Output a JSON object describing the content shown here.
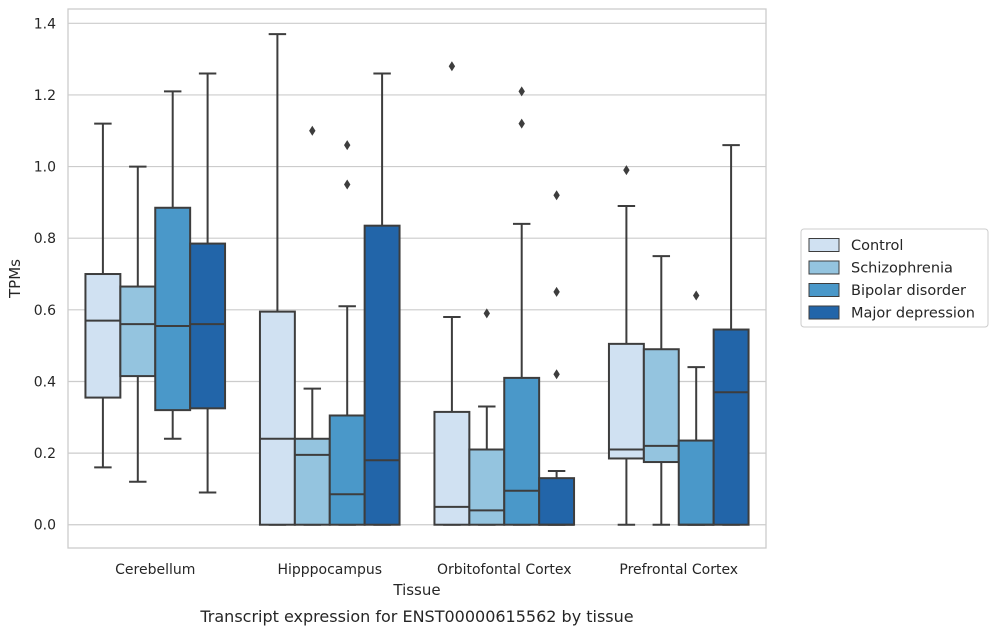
{
  "caption": "Transcript expression for ENST00000615562 by tissue",
  "chart_data": {
    "type": "box",
    "xlabel": "Tissue",
    "ylabel": "TPMs",
    "ylim": [
      -0.065,
      1.44
    ],
    "yticks": [
      0.0,
      0.2,
      0.4,
      0.6,
      0.8,
      1.0,
      1.2,
      1.4
    ],
    "ytick_labels": [
      "0.0",
      "0.2",
      "0.4",
      "0.6",
      "0.8",
      "1.0",
      "1.2",
      "1.4"
    ],
    "grid": "horizontal",
    "legend_position": "right",
    "categories": [
      "Cerebellum",
      "Hipppocampus",
      "Orbitofontal Cortex",
      "Prefrontal Cortex"
    ],
    "series": [
      {
        "name": "Control",
        "color": "#d0e1f2",
        "boxes": [
          {
            "whislo": 0.16,
            "q1": 0.355,
            "med": 0.57,
            "q3": 0.7,
            "whishi": 1.12,
            "fliers": []
          },
          {
            "whislo": 0.0,
            "q1": 0.0,
            "med": 0.24,
            "q3": 0.595,
            "whishi": 1.37,
            "fliers": []
          },
          {
            "whislo": 0.0,
            "q1": 0.0,
            "med": 0.05,
            "q3": 0.315,
            "whishi": 0.58,
            "fliers": [
              1.28
            ]
          },
          {
            "whislo": 0.0,
            "q1": 0.185,
            "med": 0.21,
            "q3": 0.505,
            "whishi": 0.89,
            "fliers": [
              0.99
            ]
          }
        ]
      },
      {
        "name": "Schizophrenia",
        "color": "#94c4df",
        "boxes": [
          {
            "whislo": 0.12,
            "q1": 0.415,
            "med": 0.56,
            "q3": 0.665,
            "whishi": 1.0,
            "fliers": []
          },
          {
            "whislo": 0.0,
            "q1": 0.0,
            "med": 0.195,
            "q3": 0.24,
            "whishi": 0.38,
            "fliers": [
              1.1
            ]
          },
          {
            "whislo": 0.0,
            "q1": 0.0,
            "med": 0.04,
            "q3": 0.21,
            "whishi": 0.33,
            "fliers": [
              0.59
            ]
          },
          {
            "whislo": 0.0,
            "q1": 0.175,
            "med": 0.22,
            "q3": 0.49,
            "whishi": 0.75,
            "fliers": []
          }
        ]
      },
      {
        "name": "Bipolar disorder",
        "color": "#4a98c9",
        "boxes": [
          {
            "whislo": 0.24,
            "q1": 0.32,
            "med": 0.555,
            "q3": 0.885,
            "whishi": 1.21,
            "fliers": []
          },
          {
            "whislo": 0.0,
            "q1": 0.0,
            "med": 0.085,
            "q3": 0.305,
            "whishi": 0.61,
            "fliers": [
              0.95,
              1.06
            ]
          },
          {
            "whislo": 0.0,
            "q1": 0.0,
            "med": 0.095,
            "q3": 0.41,
            "whishi": 0.84,
            "fliers": [
              1.12,
              1.21
            ]
          },
          {
            "whislo": 0.0,
            "q1": 0.0,
            "med": 0.0,
            "q3": 0.235,
            "whishi": 0.44,
            "fliers": [
              0.64
            ]
          }
        ]
      },
      {
        "name": "Major depression",
        "color": "#2265a9",
        "boxes": [
          {
            "whislo": 0.09,
            "q1": 0.325,
            "med": 0.56,
            "q3": 0.785,
            "whishi": 1.26,
            "fliers": []
          },
          {
            "whislo": 0.0,
            "q1": 0.0,
            "med": 0.18,
            "q3": 0.835,
            "whishi": 1.26,
            "fliers": []
          },
          {
            "whislo": 0.0,
            "q1": 0.0,
            "med": 0.0,
            "q3": 0.13,
            "whishi": 0.15,
            "fliers": [
              0.42,
              0.65,
              0.92
            ]
          },
          {
            "whislo": 0.0,
            "q1": 0.0,
            "med": 0.37,
            "q3": 0.545,
            "whishi": 1.06,
            "fliers": []
          }
        ]
      }
    ]
  }
}
